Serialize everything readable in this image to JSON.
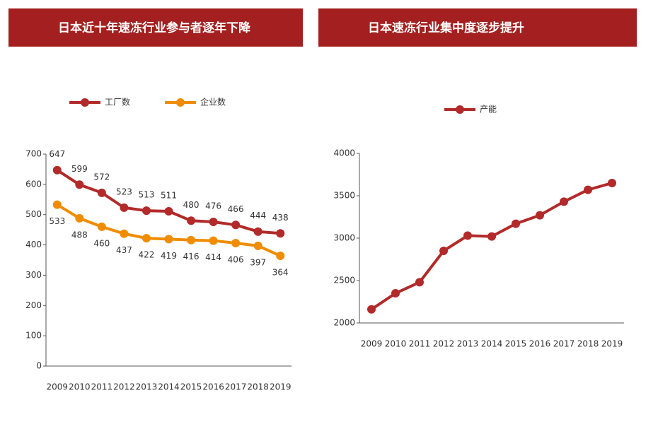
{
  "chart_data": [
    {
      "type": "line",
      "title": "日本近十年速冻行业参与者逐年下降",
      "categories": [
        "2009",
        "2010",
        "2011",
        "2012",
        "2013",
        "2014",
        "2015",
        "2016",
        "2017",
        "2018",
        "2019"
      ],
      "series": [
        {
          "name": "工厂数",
          "color": "#b22a2a",
          "values": [
            647,
            599,
            572,
            523,
            513,
            511,
            480,
            476,
            466,
            444,
            438
          ]
        },
        {
          "name": "企业数",
          "color": "#f08c00",
          "values": [
            533,
            488,
            460,
            437,
            422,
            419,
            416,
            414,
            406,
            397,
            364
          ]
        }
      ],
      "ylim": [
        0,
        700
      ],
      "yticks": [
        0,
        100,
        200,
        300,
        400,
        500,
        600,
        700
      ],
      "grid": false,
      "data_labels": true
    },
    {
      "type": "line",
      "title": "日本速冻行业集中度逐步提升",
      "categories": [
        "2009",
        "2010",
        "2011",
        "2012",
        "2013",
        "2014",
        "2015",
        "2016",
        "2017",
        "2018",
        "2019"
      ],
      "series": [
        {
          "name": "产能",
          "color": "#b22a2a",
          "values": [
            2160,
            2350,
            2480,
            2850,
            3030,
            3020,
            3170,
            3270,
            3430,
            3570,
            3650
          ]
        }
      ],
      "ylim": [
        2000,
        4000
      ],
      "yticks": [
        2000,
        2500,
        3000,
        3500,
        4000
      ],
      "grid": false,
      "data_labels": false
    }
  ]
}
